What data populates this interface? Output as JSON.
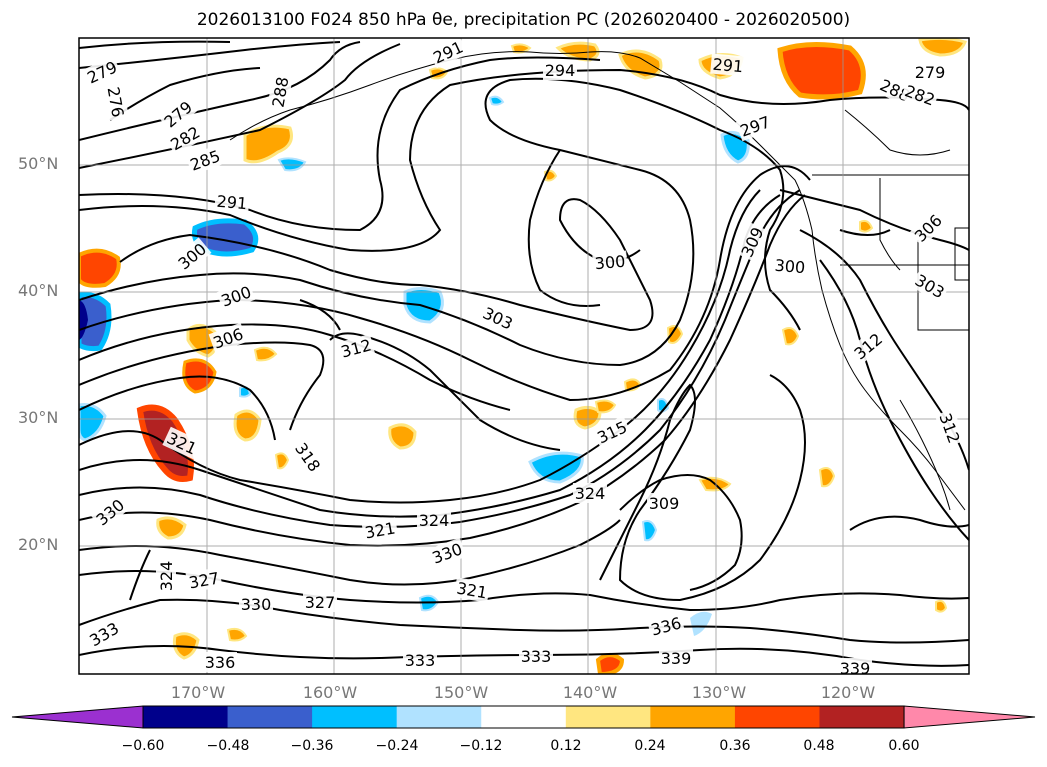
{
  "title": "2026013100 F024 850 hPa θe, precipitation PC (2026020400 - 2026020500)",
  "lat_labels": [
    "50°N",
    "40°N",
    "30°N",
    "20°N"
  ],
  "lon_labels": [
    "170°W",
    "160°W",
    "150°W",
    "140°W",
    "130°W",
    "120°W"
  ],
  "contour_labels": [
    {
      "text": "279",
      "t": "s"
    },
    {
      "text": "276",
      "t": "s"
    },
    {
      "text": "288",
      "t": "s"
    },
    {
      "text": "291",
      "t": "s"
    },
    {
      "text": "294",
      "t": "s"
    },
    {
      "text": "291",
      "t": "s"
    },
    {
      "text": "279",
      "t": "s"
    },
    {
      "text": "288",
      "t": "s"
    },
    {
      "text": "282",
      "t": "s"
    },
    {
      "text": "279",
      "t": "s"
    },
    {
      "text": "282",
      "t": "s"
    },
    {
      "text": "285",
      "t": "s"
    },
    {
      "text": "297",
      "t": "s"
    },
    {
      "text": "291",
      "t": "s"
    },
    {
      "text": "300",
      "t": "s"
    },
    {
      "text": "300",
      "t": "s"
    },
    {
      "text": "309",
      "t": "s"
    },
    {
      "text": "300",
      "t": "s"
    },
    {
      "text": "306",
      "t": "s"
    },
    {
      "text": "303",
      "t": "s"
    },
    {
      "text": "300",
      "t": "s"
    },
    {
      "text": "303",
      "t": "s"
    },
    {
      "text": "306",
      "t": "s"
    },
    {
      "text": "312",
      "t": "s"
    },
    {
      "text": "312",
      "t": "s"
    },
    {
      "text": "321",
      "t": "s"
    },
    {
      "text": "318",
      "t": "s"
    },
    {
      "text": "315",
      "t": "s"
    },
    {
      "text": "312",
      "t": "s"
    },
    {
      "text": "324",
      "t": "s"
    },
    {
      "text": "309",
      "t": "s"
    },
    {
      "text": "330",
      "t": "s"
    },
    {
      "text": "321",
      "t": "s"
    },
    {
      "text": "324",
      "t": "s"
    },
    {
      "text": "330",
      "t": "s"
    },
    {
      "text": "324",
      "t": "s"
    },
    {
      "text": "327",
      "t": "s"
    },
    {
      "text": "321",
      "t": "s"
    },
    {
      "text": "330",
      "t": "s"
    },
    {
      "text": "327",
      "t": "s"
    },
    {
      "text": "333",
      "t": "s"
    },
    {
      "text": "336",
      "t": "s"
    },
    {
      "text": "333",
      "t": "s"
    },
    {
      "text": "333",
      "t": "s"
    },
    {
      "text": "336",
      "t": "s"
    },
    {
      "text": "339",
      "t": "s"
    },
    {
      "text": "339",
      "t": "s"
    }
  ],
  "colorbar": {
    "ticks": [
      "−0.60",
      "−0.48",
      "−0.36",
      "−0.24",
      "−0.12",
      "0.12",
      "0.24",
      "0.36",
      "0.48",
      "0.60"
    ],
    "colors": [
      "#9b30d0",
      "#00008b",
      "#3a5fcd",
      "#00bfff",
      "#b0e2ff",
      "#ffffff",
      "#ffe680",
      "#ffa500",
      "#ff4500",
      "#b22222",
      "#ff88aa"
    ]
  }
}
